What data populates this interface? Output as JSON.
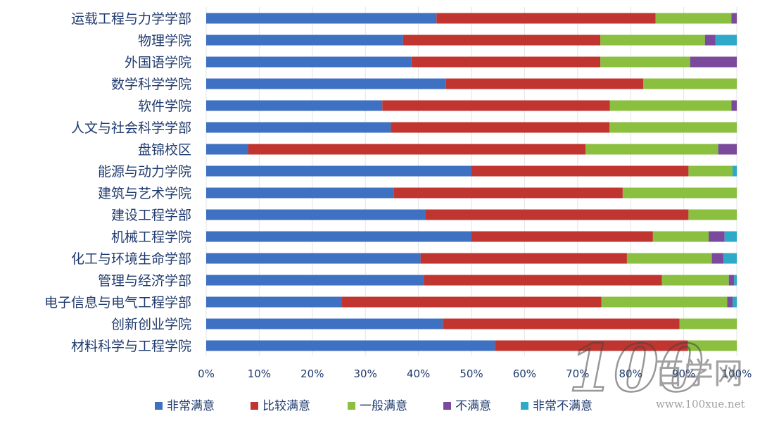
{
  "chart_data": {
    "type": "bar",
    "orientation": "horizontal",
    "stacked": true,
    "percent": true,
    "categories": [
      "运载工程与力学学部",
      "物理学院",
      "外国语学院",
      "数学科学学院",
      "软件学院",
      "人文与社会科学学部",
      "盘锦校区",
      "能源与动力学院",
      "建筑与艺术学院",
      "建设工程学部",
      "机械工程学院",
      "化工与环境生命学部",
      "管理与经济学部",
      "电子信息与电气工程学部",
      "创新创业学院",
      "材料科学与工程学院"
    ],
    "series": [
      {
        "name": "非常满意",
        "color": "#3f71c3",
        "values": [
          43.4,
          37.1,
          38.7,
          45.2,
          33.2,
          34.8,
          7.9,
          50.0,
          35.4,
          41.3,
          50.0,
          40.4,
          41.0,
          25.6,
          44.6,
          54.4
        ]
      },
      {
        "name": "比较满意",
        "color": "#c0352f",
        "values": [
          41.3,
          37.2,
          35.6,
          37.2,
          42.9,
          41.2,
          63.6,
          40.9,
          43.1,
          49.6,
          34.2,
          38.9,
          44.9,
          48.9,
          44.6,
          36.4
        ]
      },
      {
        "name": "一般满意",
        "color": "#8bbf3f",
        "values": [
          14.3,
          19.7,
          16.9,
          17.6,
          22.9,
          24.0,
          25.0,
          8.3,
          21.5,
          9.1,
          10.5,
          16.0,
          12.6,
          23.7,
          10.8,
          9.2
        ]
      },
      {
        "name": "不满意",
        "color": "#7b4a9c",
        "values": [
          1.0,
          2.0,
          8.8,
          0,
          1.0,
          0,
          3.5,
          0,
          0,
          0,
          3.0,
          2.2,
          1.0,
          1.0,
          0,
          0
        ]
      },
      {
        "name": "非常不满意",
        "color": "#2eaac8",
        "values": [
          0,
          4.0,
          0,
          0,
          0,
          0,
          0,
          0.8,
          0,
          0,
          2.3,
          2.5,
          0.5,
          0.8,
          0,
          0
        ]
      }
    ],
    "xlim": [
      0,
      100
    ],
    "xticks": [
      "0%",
      "10%",
      "20%",
      "30%",
      "40%",
      "50%",
      "60%",
      "70%",
      "80%",
      "90%",
      "100%"
    ],
    "grid": true,
    "legend": "bottom"
  },
  "watermark": {
    "logo_number": "100",
    "logo_text": "百学网",
    "url": "www.100xue.net"
  }
}
